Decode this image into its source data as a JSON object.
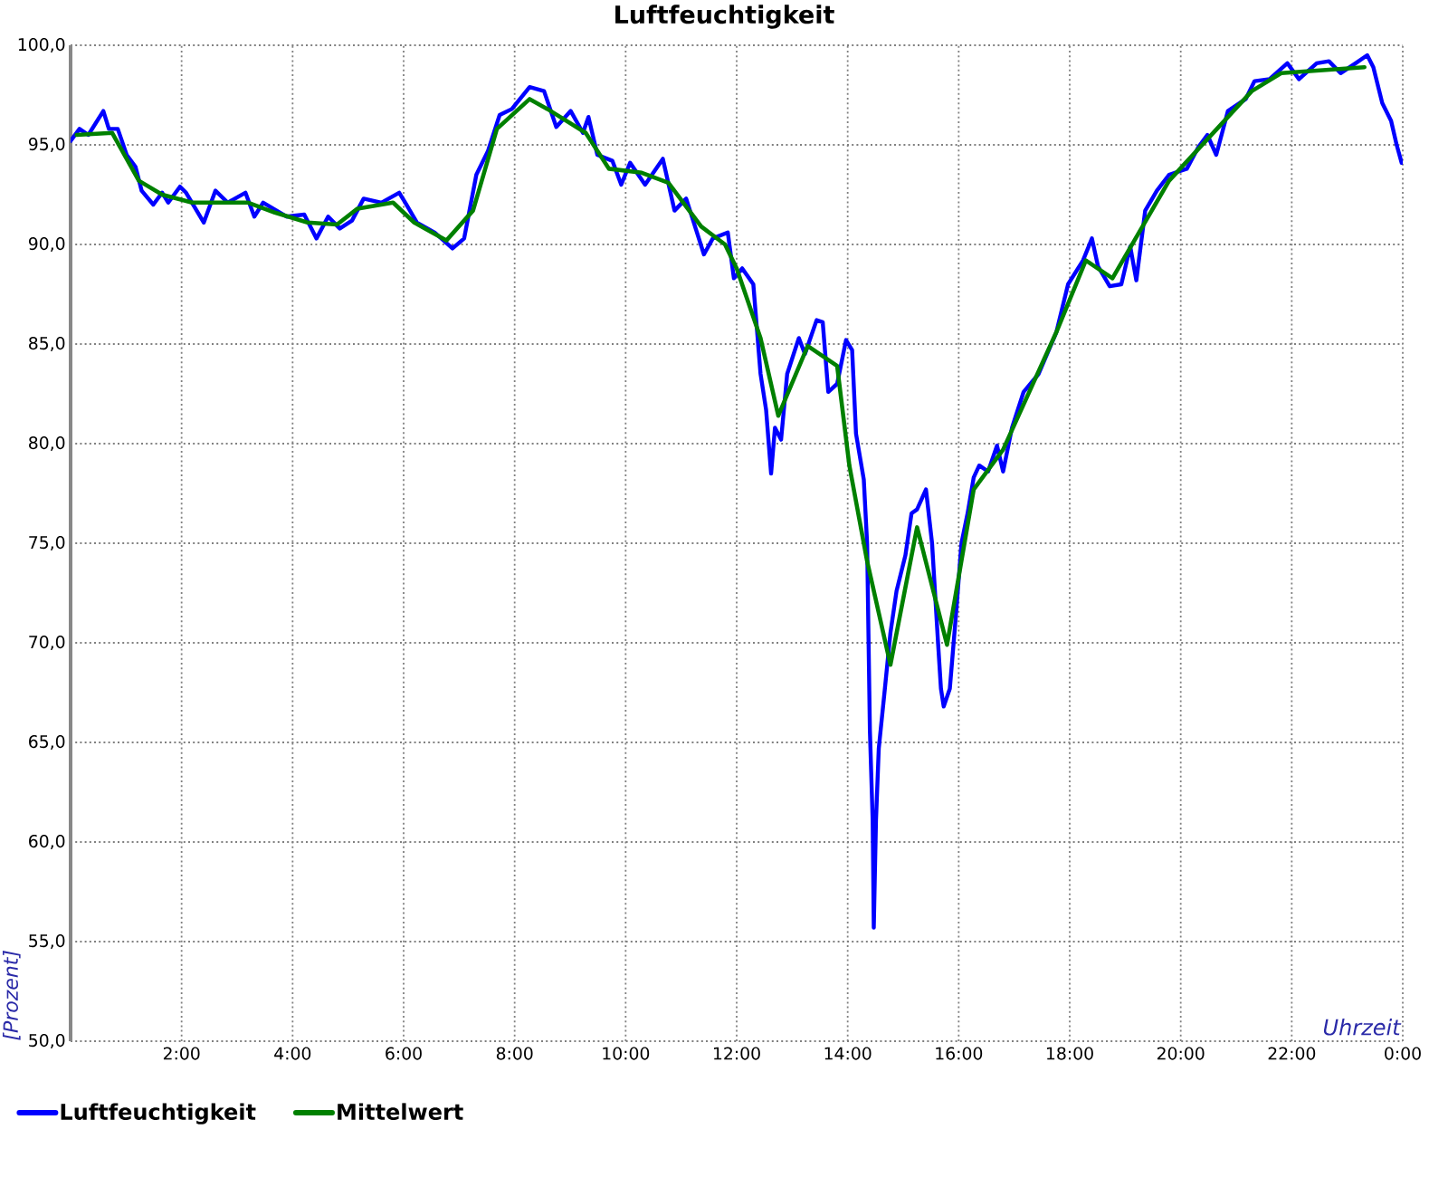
{
  "chart_data": {
    "type": "line",
    "title": "Luftfeuchtigkeit",
    "xlabel": "Uhrzeit",
    "ylabel": "[Prozent]",
    "xlim": [
      0,
      24
    ],
    "ylim": [
      50,
      100
    ],
    "xticks": [
      {
        "value": 2,
        "label": "2:00"
      },
      {
        "value": 4,
        "label": "4:00"
      },
      {
        "value": 6,
        "label": "6:00"
      },
      {
        "value": 8,
        "label": "8:00"
      },
      {
        "value": 10,
        "label": "10:00"
      },
      {
        "value": 12,
        "label": "12:00"
      },
      {
        "value": 14,
        "label": "14:00"
      },
      {
        "value": 16,
        "label": "16:00"
      },
      {
        "value": 18,
        "label": "18:00"
      },
      {
        "value": 20,
        "label": "20:00"
      },
      {
        "value": 22,
        "label": "22:00"
      },
      {
        "value": 24,
        "label": "0:00"
      }
    ],
    "yticks": [
      {
        "value": 50,
        "label": "50,0"
      },
      {
        "value": 55,
        "label": "55,0"
      },
      {
        "value": 60,
        "label": "60,0"
      },
      {
        "value": 65,
        "label": "65,0"
      },
      {
        "value": 70,
        "label": "70,0"
      },
      {
        "value": 75,
        "label": "75,0"
      },
      {
        "value": 80,
        "label": "80,0"
      },
      {
        "value": 85,
        "label": "85,0"
      },
      {
        "value": 90,
        "label": "90,0"
      },
      {
        "value": 95,
        "label": "95,0"
      },
      {
        "value": 100,
        "label": "100,0"
      }
    ],
    "grid": true,
    "legend": "bottom left",
    "series": [
      {
        "name": "Luftfeuchtigkeit",
        "color": "#0000ff",
        "x": [
          0.0,
          0.16,
          0.32,
          0.59,
          0.69,
          0.85,
          1.01,
          1.17,
          1.28,
          1.49,
          1.65,
          1.76,
          1.97,
          2.08,
          2.4,
          2.61,
          2.83,
          3.15,
          3.31,
          3.47,
          3.89,
          4.21,
          4.43,
          4.64,
          4.85,
          5.07,
          5.28,
          5.6,
          5.92,
          6.03,
          6.24,
          6.56,
          6.88,
          7.09,
          7.31,
          7.52,
          7.73,
          7.95,
          8.27,
          8.53,
          8.75,
          9.01,
          9.23,
          9.33,
          9.49,
          9.76,
          9.92,
          10.08,
          10.35,
          10.67,
          10.88,
          11.09,
          11.41,
          11.57,
          11.84,
          11.95,
          12.1,
          12.3,
          12.43,
          12.53,
          12.62,
          12.69,
          12.8,
          12.91,
          13.12,
          13.23,
          13.44,
          13.55,
          13.65,
          13.81,
          13.97,
          14.08,
          14.15,
          14.29,
          14.35,
          14.4,
          14.45,
          14.47,
          14.51,
          14.56,
          14.67,
          14.77,
          14.88,
          15.04,
          15.15,
          15.25,
          15.41,
          15.52,
          15.63,
          15.68,
          15.73,
          15.84,
          15.95,
          16.05,
          16.16,
          16.27,
          16.37,
          16.53,
          16.69,
          16.8,
          16.96,
          17.17,
          17.44,
          17.76,
          17.97,
          18.24,
          18.4,
          18.51,
          18.72,
          18.93,
          19.09,
          19.2,
          19.36,
          19.57,
          19.79,
          20.11,
          20.32,
          20.48,
          20.64,
          20.85,
          21.17,
          21.33,
          21.6,
          21.92,
          22.13,
          22.45,
          22.67,
          22.88,
          23.15,
          23.36,
          23.47,
          23.63,
          23.79,
          23.89,
          23.98
        ],
        "values": [
          95.2,
          95.8,
          95.5,
          96.7,
          95.8,
          95.8,
          94.5,
          93.9,
          92.7,
          92.0,
          92.6,
          92.1,
          92.9,
          92.6,
          91.1,
          92.7,
          92.1,
          92.6,
          91.4,
          92.1,
          91.4,
          91.5,
          90.3,
          91.4,
          90.8,
          91.2,
          92.3,
          92.1,
          92.6,
          92.1,
          91.1,
          90.6,
          89.8,
          90.3,
          93.5,
          94.7,
          96.5,
          96.8,
          97.9,
          97.7,
          95.9,
          96.7,
          95.6,
          96.4,
          94.5,
          94.2,
          93.0,
          94.1,
          93.0,
          94.3,
          91.7,
          92.3,
          89.5,
          90.3,
          90.6,
          88.3,
          88.8,
          88.0,
          83.5,
          81.7,
          78.5,
          80.8,
          80.2,
          83.5,
          85.3,
          84.5,
          86.2,
          86.1,
          82.6,
          83.0,
          85.2,
          84.7,
          80.5,
          78.2,
          75.0,
          65.6,
          61.1,
          55.7,
          61.1,
          64.7,
          67.7,
          70.5,
          72.6,
          74.4,
          76.5,
          76.7,
          77.7,
          75.0,
          69.9,
          67.7,
          66.8,
          67.7,
          71.4,
          75.0,
          76.5,
          78.3,
          78.9,
          78.6,
          79.9,
          78.6,
          80.8,
          82.6,
          83.5,
          85.6,
          88.0,
          89.2,
          90.3,
          88.9,
          87.9,
          88.0,
          89.9,
          88.2,
          91.7,
          92.7,
          93.5,
          93.8,
          94.9,
          95.5,
          94.5,
          96.7,
          97.3,
          98.2,
          98.3,
          99.1,
          98.3,
          99.1,
          99.2,
          98.6,
          99.1,
          99.5,
          98.9,
          97.1,
          96.2,
          95.0,
          94.1
        ]
      },
      {
        "name": "Mittelwert",
        "color": "#008000",
        "x": [
          0.11,
          0.75,
          1.23,
          1.65,
          2.19,
          3.2,
          3.68,
          4.27,
          4.8,
          5.17,
          5.81,
          6.19,
          6.77,
          7.25,
          7.68,
          8.27,
          8.59,
          9.28,
          9.7,
          10.29,
          10.77,
          11.36,
          11.79,
          12.0,
          12.43,
          12.75,
          13.28,
          13.81,
          14.03,
          14.35,
          14.77,
          15.25,
          15.79,
          16.27,
          16.8,
          17.76,
          18.29,
          18.77,
          19.79,
          21.28,
          21.81,
          23.31
        ],
        "values": [
          95.5,
          95.6,
          93.2,
          92.5,
          92.1,
          92.1,
          91.6,
          91.1,
          91.0,
          91.8,
          92.1,
          91.1,
          90.2,
          91.7,
          95.8,
          97.3,
          96.8,
          95.6,
          93.8,
          93.6,
          93.1,
          90.9,
          90.0,
          88.8,
          85.3,
          81.4,
          84.9,
          83.9,
          78.9,
          74.1,
          68.9,
          75.8,
          69.9,
          77.7,
          79.7,
          85.6,
          89.2,
          88.3,
          93.2,
          97.7,
          98.6,
          98.9
        ]
      }
    ]
  }
}
